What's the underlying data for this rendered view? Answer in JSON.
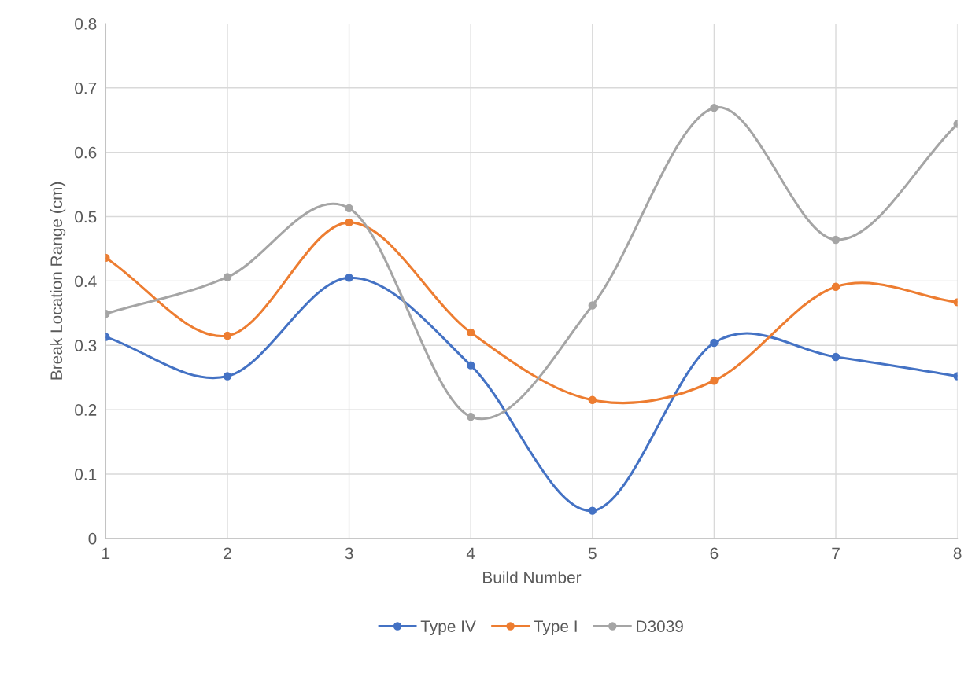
{
  "chart_data": {
    "type": "line",
    "xlabel": "Build Number",
    "ylabel": "Break Location Range (cm)",
    "x": [
      1,
      2,
      3,
      4,
      5,
      6,
      7,
      8
    ],
    "series": [
      {
        "name": "Type IV",
        "color": "#4472c4",
        "values": [
          0.313,
          0.252,
          0.405,
          0.269,
          0.043,
          0.304,
          0.282,
          0.252
        ]
      },
      {
        "name": "Type I",
        "color": "#ed7d31",
        "values": [
          0.436,
          0.315,
          0.491,
          0.32,
          0.215,
          0.245,
          0.391,
          0.367
        ]
      },
      {
        "name": "D3039",
        "color": "#a5a5a5",
        "values": [
          0.349,
          0.406,
          0.513,
          0.189,
          0.362,
          0.669,
          0.464,
          0.644
        ]
      }
    ],
    "xlim": [
      1,
      8
    ],
    "xticks": [
      1,
      2,
      3,
      4,
      5,
      6,
      7,
      8
    ],
    "ylim": [
      0,
      0.8
    ],
    "yticks": [
      0,
      0.1,
      0.2,
      0.3,
      0.4,
      0.5,
      0.6,
      0.7,
      0.8
    ],
    "grid": true,
    "legend": "bottom",
    "marker": "circle",
    "line_style": "solid"
  }
}
